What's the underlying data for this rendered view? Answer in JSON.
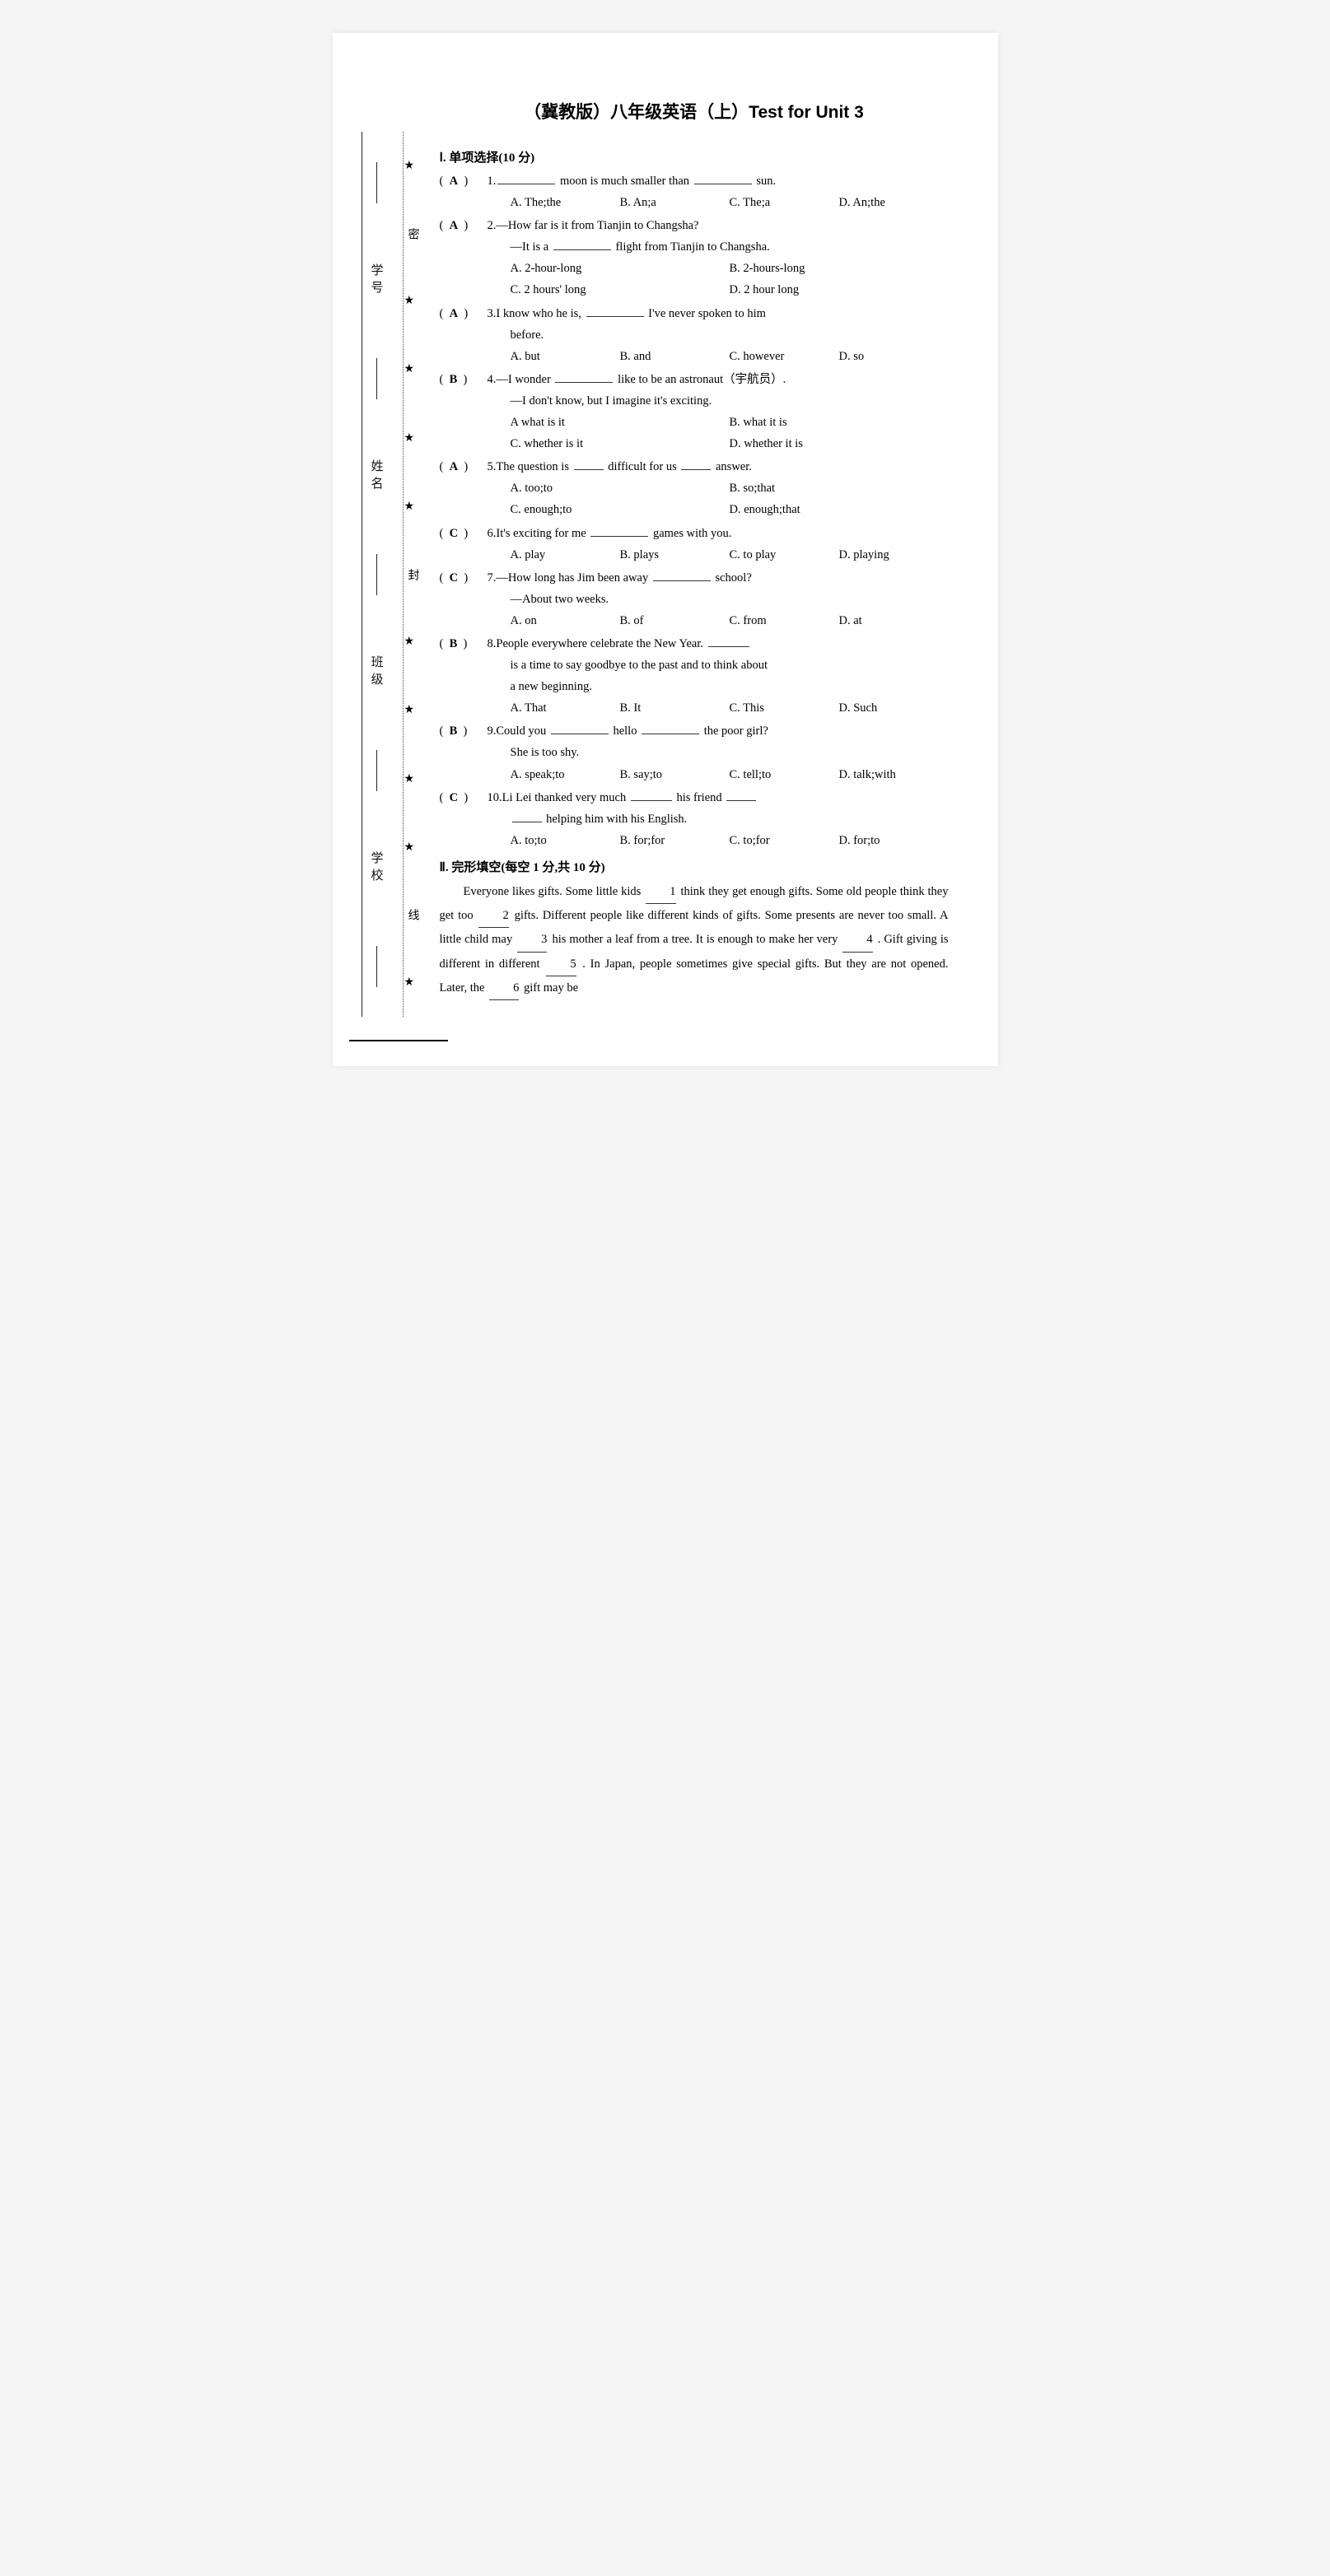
{
  "title": "（冀教版）八年级英语（上）Test for Unit 3",
  "margin": {
    "labels": [
      "学号",
      "姓名",
      "班级",
      "学校"
    ],
    "seal_chars": [
      "密",
      "封",
      "线"
    ],
    "star": "★"
  },
  "sections": {
    "s1": {
      "header": "Ⅰ. 单项选择(10 分)",
      "items": [
        {
          "ans": "A",
          "num": "1.",
          "stem_pre": "",
          "stem_post": " moon is much smaller than ",
          "stem_tail": " sun.",
          "opts": [
            "A. The;the",
            "B. An;a",
            "C. The;a",
            "D. An;the"
          ],
          "layout": "four"
        },
        {
          "ans": "A",
          "num": "2.",
          "line1": "—How far is it from Tianjin to Changsha?",
          "line2_pre": "—It is a ",
          "line2_post": " flight from Tianjin to Changsha.",
          "opts": [
            "A. 2-hour-long",
            "B. 2-hours-long",
            "C. 2 hours' long",
            "D. 2 hour long"
          ],
          "layout": "two"
        },
        {
          "ans": "A",
          "num": "3.",
          "stem_pre": "I know who he is, ",
          "stem_post": " I've never spoken to him",
          "cont": "before.",
          "opts": [
            "A. but",
            "B. and",
            "C. however",
            "D. so"
          ],
          "layout": "four"
        },
        {
          "ans": "B",
          "num": "4.",
          "line1_pre": "—I wonder ",
          "line1_post": " like to be an astronaut（宇航员）.",
          "line2": "—I don't know, but I imagine it's exciting.",
          "opts": [
            "A what is it",
            "B. what it is",
            "C. whether is it",
            "D.  whether it is"
          ],
          "layout": "two"
        },
        {
          "ans": "A",
          "num": "5.",
          "stem_pre": "The question is ",
          "stem_mid": " difficult for us ",
          "stem_post": " answer.",
          "opts": [
            "A. too;to",
            "B. so;that",
            "C. enough;to",
            "D. enough;that"
          ],
          "layout": "two"
        },
        {
          "ans": "C",
          "num": "6.",
          "stem_pre": "It's exciting for me ",
          "stem_post": " games with you.",
          "opts": [
            "A. play",
            "B. plays",
            "C. to play",
            "D. playing"
          ],
          "layout": "four"
        },
        {
          "ans": "C",
          "num": "7.",
          "line1_pre": "—How long has Jim been away ",
          "line1_post": " school?",
          "line2": "—About two weeks.",
          "opts": [
            "A. on",
            "B. of",
            "C. from",
            "D. at"
          ],
          "layout": "four"
        },
        {
          "ans": "B",
          "num": "8.",
          "stem_pre": "People everywhere celebrate the New Year. ",
          "cont1": "is a time to say goodbye to the past and to think about",
          "cont2": "a new beginning.",
          "opts": [
            "A. That",
            "B. It",
            "C. This",
            "D. Such"
          ],
          "layout": "four"
        },
        {
          "ans": "B",
          "num": "9.",
          "stem_pre": "Could you ",
          "stem_mid": " hello ",
          "stem_post": " the poor girl?",
          "cont": "She is too shy.",
          "opts": [
            "A. speak;to",
            "B. say;to",
            "C. tell;to",
            "D. talk;with"
          ],
          "layout": "four"
        },
        {
          "ans": "C",
          "num": "10.",
          "stem_pre": "Li Lei thanked very much ",
          "stem_mid": " his friend ",
          "cont_pre": "",
          "cont_post": " helping him with his English.",
          "opts": [
            "A. to;to",
            "B. for;for",
            "C. to;for",
            "D. for;to"
          ],
          "layout": "four"
        }
      ]
    },
    "s2": {
      "header": "Ⅱ. 完形填空(每空 1 分,共 10 分)",
      "passage": {
        "p1a": "Everyone likes gifts. Some little kids ",
        "n1": "1",
        "p1b": " think they get enough gifts. Some old people think they get too ",
        "n2": "2",
        "p1c": " gifts. Different people like different kinds of gifts. Some presents are never too small. A little child may ",
        "n3": "3",
        "p1d": " his mother a leaf from a tree. It is enough to make her very ",
        "n4": "4",
        "p1e": " . Gift giving is different in different ",
        "n5": "5",
        "p1f": " . In Japan, people sometimes give special gifts. But they are not opened. Later, the ",
        "n6": "6",
        "p1g": " gift may be"
      }
    }
  }
}
